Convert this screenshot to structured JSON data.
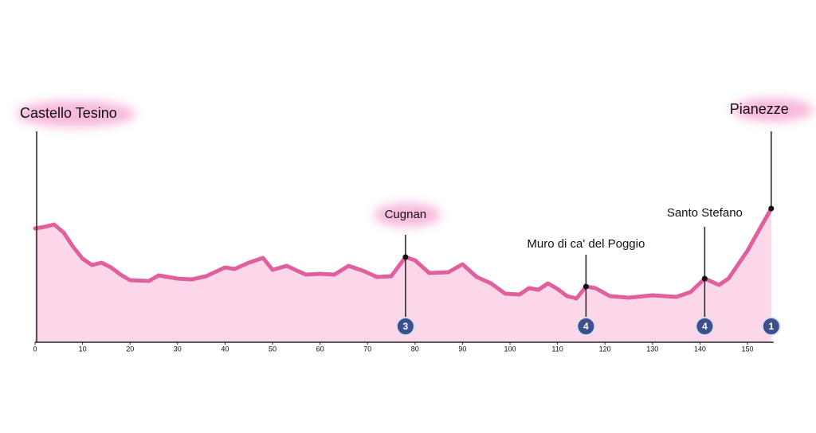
{
  "chart_data": {
    "type": "area",
    "x": [
      0,
      2,
      4,
      6,
      8,
      10,
      12,
      14,
      16,
      18,
      20,
      24,
      26,
      30,
      33,
      36,
      40,
      42,
      45,
      48,
      50,
      53,
      57,
      60,
      63,
      66,
      69,
      72,
      75,
      78,
      80,
      83,
      87,
      90,
      93,
      96,
      99,
      102,
      104,
      106,
      108,
      110,
      112,
      114,
      116,
      118,
      121,
      125,
      130,
      135,
      138,
      141,
      144,
      146,
      150,
      155
    ],
    "values": [
      143,
      145,
      148,
      138,
      120,
      105,
      97,
      100,
      94,
      85,
      78,
      77,
      84,
      80,
      79,
      83,
      94,
      92,
      100,
      106,
      91,
      96,
      85,
      86,
      85,
      96,
      90,
      82,
      83,
      107,
      103,
      87,
      88,
      98,
      82,
      74,
      61,
      60,
      68,
      66,
      74,
      67,
      58,
      55,
      70,
      68,
      58,
      56,
      59,
      57,
      63,
      80,
      72,
      80,
      115,
      168
    ],
    "xlim": [
      0,
      160
    ],
    "ylim": [
      0,
      420
    ],
    "xticks": [
      0,
      10,
      20,
      30,
      40,
      50,
      60,
      70,
      80,
      90,
      100,
      110,
      120,
      130,
      140,
      150
    ],
    "line_color": "#e0609e",
    "fill_color": "#fcd7ea",
    "start": {
      "name": "Castello Tesino",
      "x": 0
    },
    "climbs": [
      {
        "name": "Cugnan",
        "x": 78,
        "category": 3
      },
      {
        "name": "Muro di ca' del Poggio",
        "x": 116,
        "category": 4
      },
      {
        "name": "Santo Stefano",
        "x": 141,
        "category": 4
      },
      {
        "name": "Pianezze",
        "x": 155,
        "category": 1
      }
    ]
  }
}
